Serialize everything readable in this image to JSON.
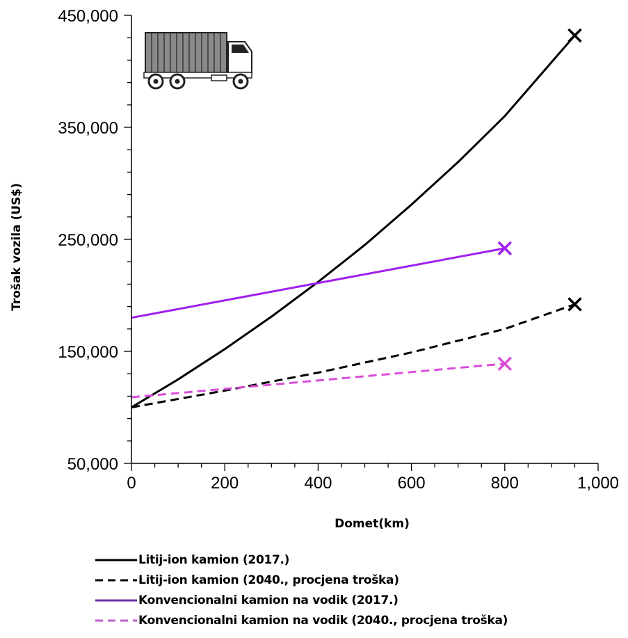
{
  "chart_data": {
    "type": "line",
    "xlabel": "Domet(km)",
    "ylabel": "Trošak vozila (US$)",
    "xlim": [
      0,
      1000
    ],
    "ylim": [
      50000,
      450000
    ],
    "x_ticks": [
      "0",
      "200",
      "400",
      "600",
      "800",
      "1,000"
    ],
    "y_ticks": [
      "50,000",
      "150,000",
      "250,000",
      "350,000",
      "450,000"
    ],
    "grid": false,
    "legend_position": "bottom",
    "series": [
      {
        "name": "Litij-ion kamion (2017.)",
        "color": "#000000",
        "dash": false,
        "x": [
          0,
          100,
          200,
          300,
          400,
          500,
          600,
          700,
          800,
          950
        ],
        "y": [
          100000,
          125000,
          152000,
          181000,
          212000,
          245000,
          281000,
          319000,
          360000,
          432000
        ],
        "end_marker": "x"
      },
      {
        "name": "Litij-ion kamion (2040., procjena troška)",
        "color": "#000000",
        "dash": true,
        "x": [
          0,
          200,
          400,
          600,
          800,
          950
        ],
        "y": [
          100000,
          115000,
          131000,
          149000,
          170000,
          192000
        ],
        "end_marker": "x"
      },
      {
        "name": "Konvencionalni kamion na vodik (2017.)",
        "color": "#a020f0",
        "dash": false,
        "x": [
          0,
          800
        ],
        "y": [
          180000,
          242000
        ],
        "end_marker": "x"
      },
      {
        "name": "Konvencionalni kamion na vodik (2040., procjena troška)",
        "color": "#d94fd9",
        "dash": true,
        "x": [
          0,
          800
        ],
        "y": [
          109000,
          139000
        ],
        "end_marker": "x"
      }
    ],
    "legend_colors": [
      "#000000",
      "#000000",
      "#7030a0",
      "#c060d0"
    ],
    "icon": "truck-icon"
  }
}
